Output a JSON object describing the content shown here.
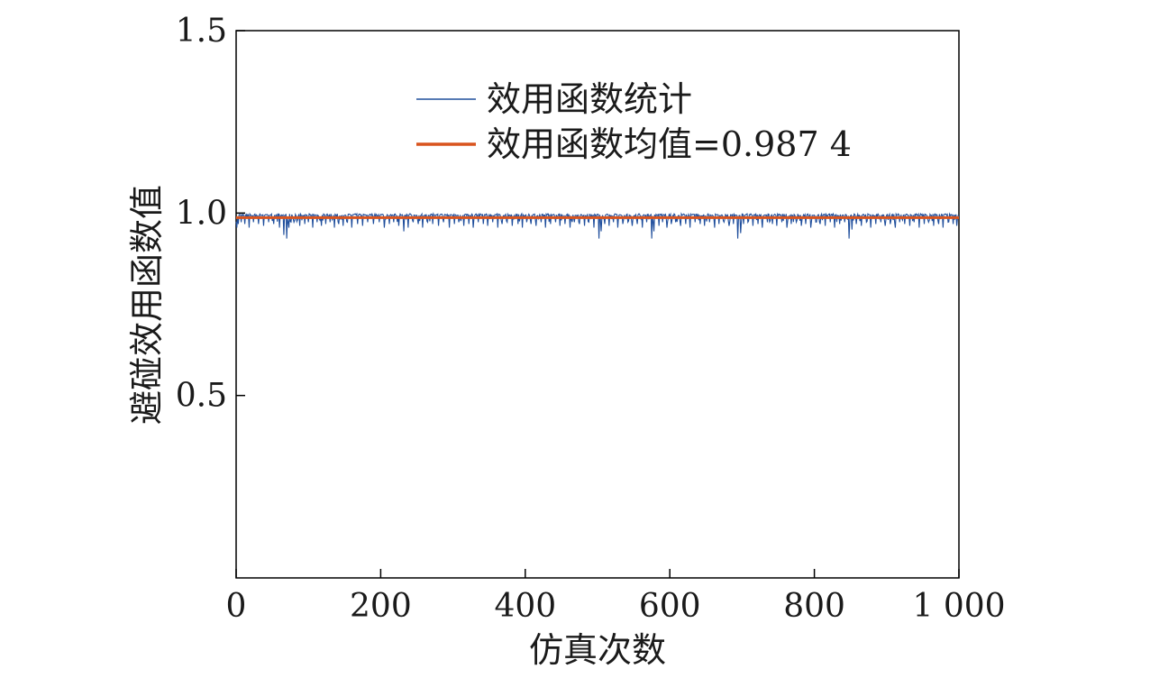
{
  "chart_data": {
    "type": "line",
    "title": "",
    "xlabel": "仿真次数",
    "ylabel": "避碰效用函数值",
    "xlim": [
      0,
      1000
    ],
    "ylim": [
      0,
      1.5
    ],
    "xticks": [
      0,
      200,
      400,
      600,
      800,
      1000
    ],
    "xtick_labels": [
      "0",
      "200",
      "400",
      "600",
      "800",
      "1 000"
    ],
    "yticks": [
      0.5,
      1.0,
      1.5
    ],
    "ytick_labels": [
      "0.5",
      "1.0",
      "1.5"
    ],
    "grid": false,
    "legend_position": "top-center",
    "series": [
      {
        "name": "效用函数统计",
        "color": "#1f4e9c",
        "baseline": 0.995,
        "dips": [
          [
            1,
            0.96
          ],
          [
            3,
            0.97
          ],
          [
            7,
            0.975
          ],
          [
            12,
            0.97
          ],
          [
            18,
            0.96
          ],
          [
            24,
            0.975
          ],
          [
            31,
            0.97
          ],
          [
            38,
            0.965
          ],
          [
            45,
            0.975
          ],
          [
            52,
            0.97
          ],
          [
            60,
            0.96
          ],
          [
            66,
            0.94
          ],
          [
            70,
            0.93
          ],
          [
            73,
            0.96
          ],
          [
            80,
            0.975
          ],
          [
            88,
            0.965
          ],
          [
            95,
            0.97
          ],
          [
            100,
            0.975
          ],
          [
            106,
            0.96
          ],
          [
            112,
            0.975
          ],
          [
            118,
            0.965
          ],
          [
            124,
            0.97
          ],
          [
            130,
            0.975
          ],
          [
            136,
            0.96
          ],
          [
            142,
            0.97
          ],
          [
            148,
            0.965
          ],
          [
            154,
            0.975
          ],
          [
            160,
            0.96
          ],
          [
            168,
            0.97
          ],
          [
            175,
            0.965
          ],
          [
            182,
            0.975
          ],
          [
            190,
            0.97
          ],
          [
            198,
            0.975
          ],
          [
            205,
            0.96
          ],
          [
            212,
            0.97
          ],
          [
            218,
            0.975
          ],
          [
            225,
            0.965
          ],
          [
            232,
            0.95
          ],
          [
            238,
            0.96
          ],
          [
            245,
            0.975
          ],
          [
            252,
            0.97
          ],
          [
            258,
            0.96
          ],
          [
            265,
            0.975
          ],
          [
            272,
            0.97
          ],
          [
            280,
            0.965
          ],
          [
            287,
            0.975
          ],
          [
            295,
            0.96
          ],
          [
            302,
            0.97
          ],
          [
            308,
            0.975
          ],
          [
            315,
            0.965
          ],
          [
            322,
            0.97
          ],
          [
            328,
            0.96
          ],
          [
            335,
            0.975
          ],
          [
            342,
            0.97
          ],
          [
            348,
            0.965
          ],
          [
            355,
            0.975
          ],
          [
            362,
            0.96
          ],
          [
            368,
            0.97
          ],
          [
            375,
            0.975
          ],
          [
            382,
            0.965
          ],
          [
            390,
            0.97
          ],
          [
            396,
            0.96
          ],
          [
            402,
            0.975
          ],
          [
            408,
            0.97
          ],
          [
            415,
            0.965
          ],
          [
            422,
            0.975
          ],
          [
            428,
            0.96
          ],
          [
            435,
            0.97
          ],
          [
            442,
            0.975
          ],
          [
            448,
            0.965
          ],
          [
            455,
            0.97
          ],
          [
            462,
            0.96
          ],
          [
            468,
            0.975
          ],
          [
            475,
            0.97
          ],
          [
            482,
            0.965
          ],
          [
            488,
            0.975
          ],
          [
            495,
            0.96
          ],
          [
            502,
            0.93
          ],
          [
            505,
            0.95
          ],
          [
            510,
            0.97
          ],
          [
            516,
            0.965
          ],
          [
            522,
            0.975
          ],
          [
            528,
            0.96
          ],
          [
            535,
            0.97
          ],
          [
            542,
            0.975
          ],
          [
            548,
            0.965
          ],
          [
            555,
            0.97
          ],
          [
            562,
            0.96
          ],
          [
            568,
            0.975
          ],
          [
            575,
            0.93
          ],
          [
            578,
            0.95
          ],
          [
            585,
            0.965
          ],
          [
            590,
            0.975
          ],
          [
            596,
            0.96
          ],
          [
            602,
            0.97
          ],
          [
            608,
            0.975
          ],
          [
            615,
            0.965
          ],
          [
            622,
            0.97
          ],
          [
            628,
            0.96
          ],
          [
            635,
            0.975
          ],
          [
            642,
            0.97
          ],
          [
            648,
            0.965
          ],
          [
            655,
            0.975
          ],
          [
            662,
            0.96
          ],
          [
            668,
            0.97
          ],
          [
            675,
            0.975
          ],
          [
            682,
            0.965
          ],
          [
            688,
            0.97
          ],
          [
            694,
            0.93
          ],
          [
            698,
            0.945
          ],
          [
            702,
            0.97
          ],
          [
            708,
            0.975
          ],
          [
            715,
            0.965
          ],
          [
            722,
            0.97
          ],
          [
            728,
            0.96
          ],
          [
            735,
            0.975
          ],
          [
            742,
            0.97
          ],
          [
            748,
            0.965
          ],
          [
            755,
            0.975
          ],
          [
            762,
            0.96
          ],
          [
            768,
            0.97
          ],
          [
            775,
            0.975
          ],
          [
            782,
            0.965
          ],
          [
            788,
            0.97
          ],
          [
            795,
            0.96
          ],
          [
            802,
            0.975
          ],
          [
            808,
            0.97
          ],
          [
            815,
            0.965
          ],
          [
            822,
            0.975
          ],
          [
            828,
            0.96
          ],
          [
            835,
            0.97
          ],
          [
            842,
            0.975
          ],
          [
            848,
            0.93
          ],
          [
            852,
            0.955
          ],
          [
            858,
            0.97
          ],
          [
            865,
            0.965
          ],
          [
            872,
            0.975
          ],
          [
            878,
            0.96
          ],
          [
            885,
            0.97
          ],
          [
            892,
            0.975
          ],
          [
            898,
            0.965
          ],
          [
            905,
            0.97
          ],
          [
            912,
            0.96
          ],
          [
            918,
            0.975
          ],
          [
            925,
            0.97
          ],
          [
            932,
            0.965
          ],
          [
            938,
            0.975
          ],
          [
            945,
            0.96
          ],
          [
            952,
            0.97
          ],
          [
            958,
            0.975
          ],
          [
            965,
            0.965
          ],
          [
            972,
            0.97
          ],
          [
            978,
            0.96
          ],
          [
            985,
            0.975
          ],
          [
            992,
            0.97
          ],
          [
            997,
            0.965
          ]
        ]
      },
      {
        "name": "效用函数均值=0.987 4",
        "color": "#d9541e",
        "values": [
          0.9874,
          0.9874
        ],
        "x": [
          0,
          1000
        ]
      }
    ]
  }
}
